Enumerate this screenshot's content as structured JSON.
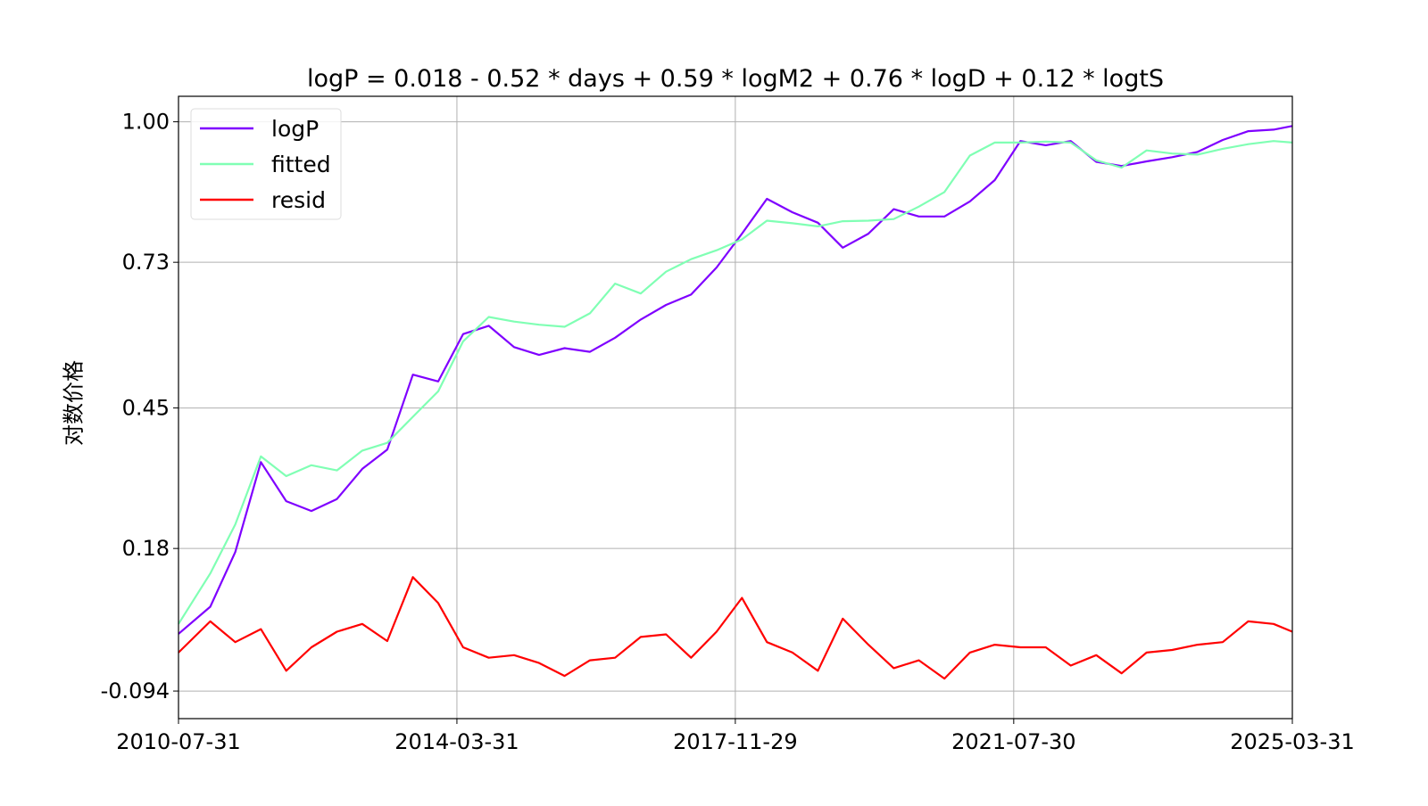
{
  "chart_data": {
    "type": "line",
    "title": "logP = 0.018 - 0.52 * days + 0.59 * logM2 + 0.76 * logD + 0.12 * logtS",
    "xlabel": "",
    "ylabel": "对数价格",
    "x_ticks": [
      "2010-07-31",
      "2014-03-31",
      "2017-11-29",
      "2021-07-30",
      "2025-03-31"
    ],
    "y_ticks": [
      "1.00",
      "0.73",
      "0.45",
      "0.18",
      "-0.094"
    ],
    "y_tick_values": [
      1.0,
      0.73,
      0.45,
      0.18,
      -0.094
    ],
    "xlim": [
      "2010-07-31",
      "2025-03-31"
    ],
    "ylim": [
      -0.147,
      1.049
    ],
    "grid": true,
    "legend_position": "upper-left",
    "x": [
      "2010-07-31",
      "2010-12-31",
      "2011-04-30",
      "2011-08-31",
      "2011-12-31",
      "2012-04-30",
      "2012-08-31",
      "2012-12-31",
      "2013-04-30",
      "2013-08-31",
      "2013-12-31",
      "2014-04-30",
      "2014-08-31",
      "2014-12-31",
      "2015-04-30",
      "2015-08-31",
      "2015-12-31",
      "2016-04-30",
      "2016-08-31",
      "2016-12-31",
      "2017-04-30",
      "2017-08-31",
      "2017-12-31",
      "2018-04-30",
      "2018-08-31",
      "2018-12-31",
      "2019-04-30",
      "2019-08-31",
      "2019-12-31",
      "2020-04-30",
      "2020-08-31",
      "2020-12-31",
      "2021-04-30",
      "2021-08-31",
      "2021-12-31",
      "2022-04-30",
      "2022-08-31",
      "2022-12-31",
      "2023-04-30",
      "2023-08-31",
      "2023-12-31",
      "2024-04-30",
      "2024-08-31",
      "2024-12-31",
      "2025-03-31"
    ],
    "series": [
      {
        "name": "logP",
        "color": "#7f00ff",
        "values": [
          0.016,
          0.068,
          0.173,
          0.346,
          0.271,
          0.252,
          0.275,
          0.333,
          0.37,
          0.514,
          0.501,
          0.592,
          0.608,
          0.567,
          0.552,
          0.565,
          0.558,
          0.585,
          0.62,
          0.648,
          0.668,
          0.72,
          0.785,
          0.852,
          0.826,
          0.806,
          0.758,
          0.785,
          0.832,
          0.818,
          0.818,
          0.847,
          0.888,
          0.963,
          0.955,
          0.963,
          0.923,
          0.915,
          0.924,
          0.932,
          0.942,
          0.965,
          0.982,
          0.985,
          0.992
        ]
      },
      {
        "name": "fitted",
        "color": "#80ffb4",
        "values": [
          0.035,
          0.132,
          0.226,
          0.357,
          0.319,
          0.34,
          0.33,
          0.368,
          0.383,
          0.433,
          0.482,
          0.578,
          0.625,
          0.616,
          0.61,
          0.606,
          0.632,
          0.689,
          0.67,
          0.712,
          0.736,
          0.753,
          0.774,
          0.81,
          0.805,
          0.799,
          0.809,
          0.81,
          0.813,
          0.837,
          0.865,
          0.935,
          0.96,
          0.96,
          0.962,
          0.96,
          0.926,
          0.912,
          0.945,
          0.939,
          0.937,
          0.948,
          0.957,
          0.963,
          0.96
        ]
      },
      {
        "name": "resid",
        "color": "#ff0000",
        "values": [
          -0.02,
          0.04,
          0.0,
          0.025,
          -0.055,
          -0.01,
          0.02,
          0.035,
          0.002,
          0.125,
          0.075,
          -0.01,
          -0.03,
          -0.025,
          -0.04,
          -0.065,
          -0.035,
          -0.03,
          0.01,
          0.015,
          -0.03,
          0.02,
          0.085,
          0.0,
          -0.02,
          -0.055,
          0.045,
          -0.005,
          -0.05,
          -0.035,
          -0.07,
          -0.02,
          -0.005,
          -0.01,
          -0.01,
          -0.045,
          -0.025,
          -0.06,
          -0.02,
          -0.015,
          -0.005,
          0.0,
          0.04,
          0.035,
          0.02
        ]
      }
    ]
  }
}
